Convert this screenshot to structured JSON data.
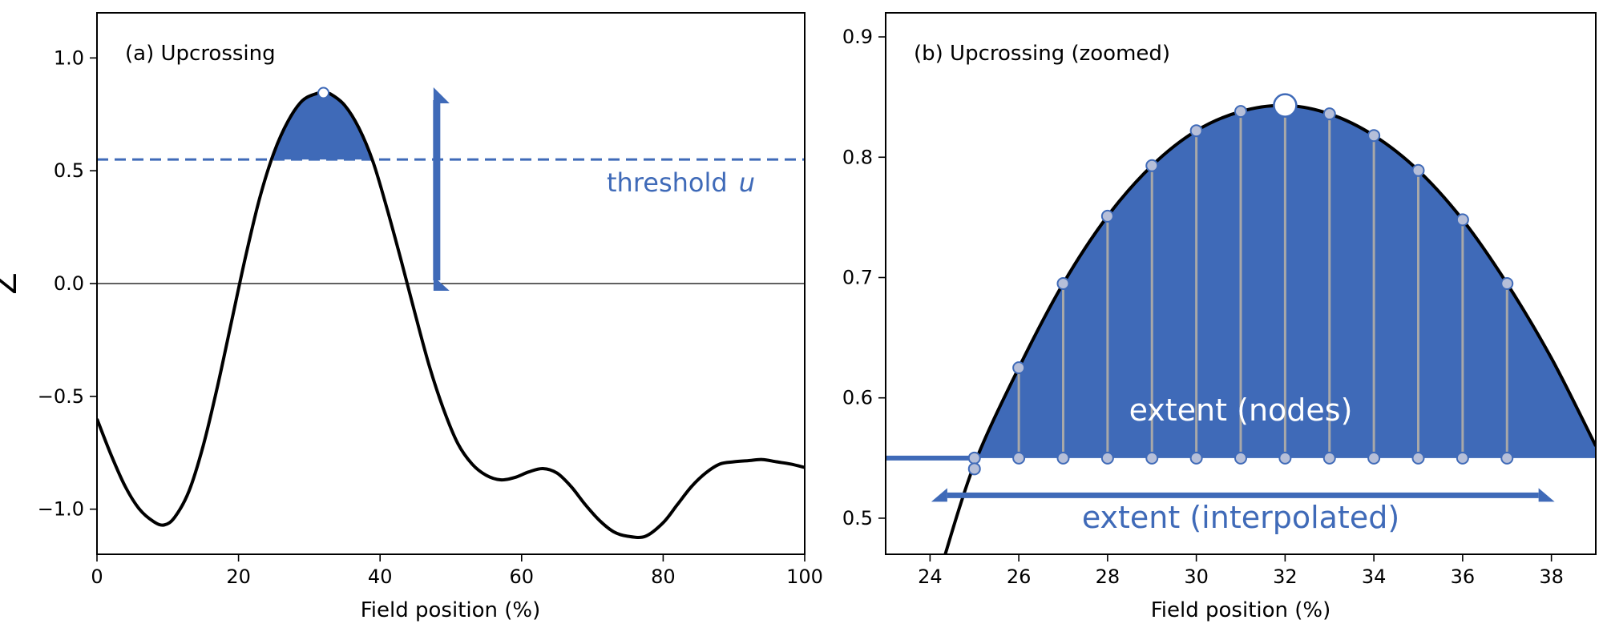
{
  "chart_data": [
    {
      "type": "line",
      "title": "(a) Upcrossing",
      "xlabel": "Field position  (%)",
      "ylabel": "Z",
      "xlim": [
        0,
        100
      ],
      "ylim": [
        -1.2,
        1.2
      ],
      "xticks": [
        "0",
        "20",
        "40",
        "60",
        "80",
        "100"
      ],
      "yticks": [
        "−1.0",
        "−0.5",
        "0.0",
        "0.5",
        "1.0"
      ],
      "ytick_values": [
        -1.0,
        -0.5,
        0.0,
        0.5,
        1.0
      ],
      "xtick_values": [
        0,
        20,
        40,
        60,
        80,
        100
      ],
      "grid": false,
      "series": [
        {
          "x": [
            0,
            2,
            4,
            6,
            8,
            9.5,
            11,
            13,
            15,
            17,
            19,
            21,
            23,
            25,
            27,
            29,
            31,
            32,
            33,
            35,
            37,
            39,
            41,
            43,
            45,
            47,
            49,
            51,
            53,
            55,
            57,
            59,
            61,
            63,
            65,
            67,
            69,
            71,
            73,
            75,
            77.5,
            80,
            82,
            84,
            86,
            88,
            90,
            92,
            94,
            96,
            98,
            100
          ],
          "y": [
            -0.6,
            -0.76,
            -0.9,
            -1.0,
            -1.055,
            -1.07,
            -1.035,
            -0.92,
            -0.72,
            -0.46,
            -0.17,
            0.12,
            0.38,
            0.58,
            0.72,
            0.81,
            0.842,
            0.845,
            0.84,
            0.79,
            0.69,
            0.54,
            0.33,
            0.1,
            -0.14,
            -0.37,
            -0.56,
            -0.71,
            -0.8,
            -0.85,
            -0.87,
            -0.86,
            -0.835,
            -0.82,
            -0.84,
            -0.9,
            -0.98,
            -1.05,
            -1.1,
            -1.12,
            -1.12,
            -1.06,
            -0.98,
            -0.9,
            -0.84,
            -0.8,
            -0.79,
            -0.785,
            -0.78,
            -0.79,
            -0.8,
            -0.815
          ],
          "color": "#000000"
        }
      ],
      "threshold": {
        "value": 0.55,
        "color": "#3f6ab8"
      },
      "threshold_label": "threshold",
      "threshold_symbol": "u",
      "peak": {
        "x": 32,
        "y": 0.845
      },
      "arrow": {
        "x": 48,
        "from": 0.0,
        "to": 0.87
      },
      "accent_color": "#3f6ab8"
    },
    {
      "type": "line",
      "title": "(b) Upcrossing  (zoomed)",
      "xlabel": "Field position  (%)",
      "xlim": [
        23,
        39
      ],
      "ylim": [
        0.47,
        0.92
      ],
      "xticks": [
        "24",
        "26",
        "28",
        "30",
        "32",
        "34",
        "36",
        "38"
      ],
      "xtick_values": [
        24,
        26,
        28,
        30,
        32,
        34,
        36,
        38
      ],
      "yticks": [
        "0.5",
        "0.6",
        "0.7",
        "0.8",
        "0.9"
      ],
      "ytick_values": [
        0.5,
        0.6,
        0.7,
        0.8,
        0.9
      ],
      "grid": false,
      "series": [
        {
          "x": [
            24.3,
            25,
            26,
            27,
            28,
            29,
            30,
            31,
            32,
            33,
            34,
            35,
            36,
            37,
            38,
            39
          ],
          "y": [
            0.465,
            0.545,
            0.625,
            0.695,
            0.751,
            0.793,
            0.822,
            0.838,
            0.843,
            0.836,
            0.818,
            0.789,
            0.748,
            0.695,
            0.633,
            0.56
          ],
          "color": "#000000"
        }
      ],
      "nodes": {
        "x": [
          25,
          26,
          27,
          28,
          29,
          30,
          31,
          32,
          33,
          34,
          35,
          36,
          37
        ],
        "y": [
          0.549,
          0.625,
          0.695,
          0.751,
          0.793,
          0.822,
          0.838,
          0.843,
          0.836,
          0.818,
          0.789,
          0.748,
          0.695
        ]
      },
      "threshold": {
        "value": 0.55
      },
      "extent_nodes_label": "extent (nodes)",
      "extent_interpolated_label": "extent (interpolated)",
      "extent_interpolated": [
        24.1,
        38
      ],
      "extent_interpolated_y": 0.519,
      "accent_color": "#3f6ab8",
      "node_fill": "#b6bfd9",
      "stem_color": "#a8a8a8"
    }
  ]
}
